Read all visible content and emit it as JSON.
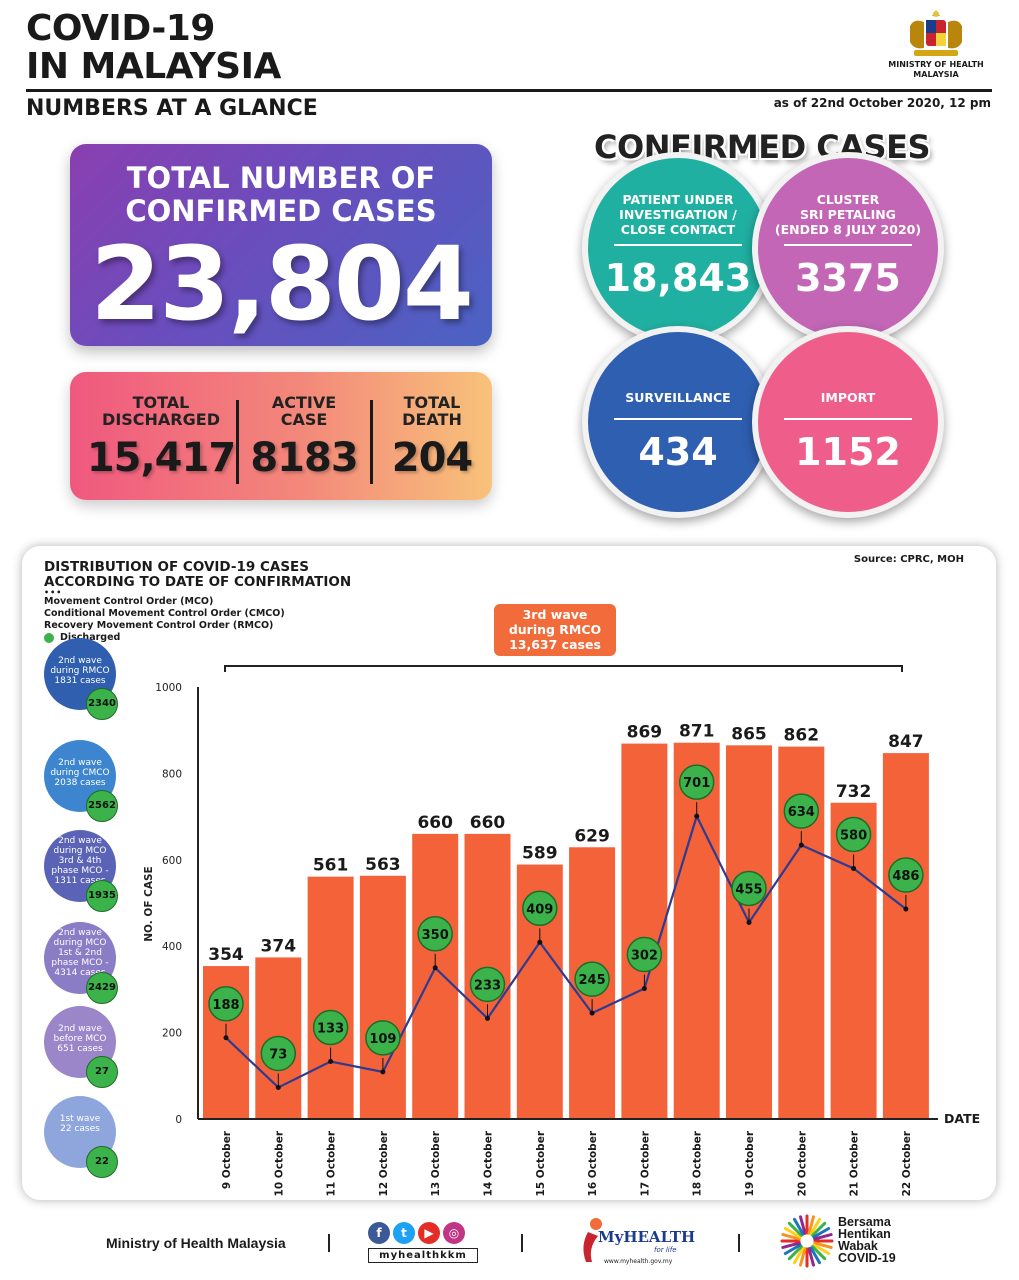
{
  "header": {
    "title_line1": "COVID-19",
    "title_line2": "IN MALAYSIA",
    "subtitle": "NUMBERS AT A GLANCE",
    "as_of": "as of 22nd October 2020, 12 pm",
    "ministry_line1": "MINISTRY OF HEALTH",
    "ministry_line2": "MALAYSIA"
  },
  "total": {
    "label_line1": "TOTAL NUMBER OF",
    "label_line2": "CONFIRMED CASES",
    "value": "23,804"
  },
  "stats": {
    "discharged_label1": "TOTAL",
    "discharged_label2": "DISCHARGED",
    "discharged_value": "15,417",
    "active_label1": "ACTIVE",
    "active_label2": "CASE",
    "active_value": "8183",
    "death_label1": "TOTAL",
    "death_label2": "DEATH",
    "death_value": "204"
  },
  "confirmed": {
    "title": "CONFIRMED CASES",
    "pui_label1": "PATIENT UNDER",
    "pui_label2": "INVESTIGATION /",
    "pui_label3": "CLOSE CONTACT",
    "pui_value": "18,843",
    "cluster_label1": "CLUSTER",
    "cluster_label2": "SRI PETALING",
    "cluster_label3": "(ENDED 8 JULY 2020)",
    "cluster_value": "3375",
    "surveillance_label": "SURVEILLANCE",
    "surveillance_value": "434",
    "import_label": "IMPORT",
    "import_value": "1152"
  },
  "chart_panel": {
    "title_line1": "DISTRIBUTION OF COVID-19 CASES",
    "title_line2": "ACCORDING TO DATE OF CONFIRMATION",
    "source": "Source: CPRC, MOH",
    "legend_dots": "•••",
    "legend_mco": "Movement Control Order (MCO)",
    "legend_cmco": "Conditional Movement Control Order (CMCO)",
    "legend_rmco": "Recovery Movement Control Order (RMCO)",
    "legend_discharged": "Discharged",
    "wave_badge_line1": "3rd wave",
    "wave_badge_line2": "during RMCO",
    "wave_badge_line3": "13,637 cases",
    "side_waves": [
      {
        "l1": "2nd wave",
        "l2": "during RMCO",
        "l3": "1831 cases",
        "l4": "",
        "discharged": "2340",
        "color": "#2f5fae"
      },
      {
        "l1": "2nd wave",
        "l2": "during CMCO",
        "l3": "2038 cases",
        "l4": "",
        "discharged": "2562",
        "color": "#3d86cf"
      },
      {
        "l1": "2nd wave",
        "l2": "during MCO",
        "l3": "3rd & 4th",
        "l4": "phase MCO -",
        "l5": "1311 cases",
        "discharged": "1935",
        "color": "#5a63b6"
      },
      {
        "l1": "2nd wave",
        "l2": "during MCO",
        "l3": "1st & 2nd",
        "l4": "phase MCO -",
        "l5": "4314 cases",
        "discharged": "2429",
        "color": "#8b7cc6"
      },
      {
        "l1": "2nd wave",
        "l2": "before MCO",
        "l3": "651 cases",
        "l4": "",
        "discharged": "27",
        "color": "#9a86c9"
      },
      {
        "l1": "1st wave",
        "l2": "22 cases",
        "l3": "",
        "l4": "",
        "discharged": "22",
        "color": "#8fa6dc"
      }
    ]
  },
  "chart_data": {
    "type": "bar",
    "categories": [
      "9 October",
      "10 October",
      "11 October",
      "12 October",
      "13 October",
      "14 October",
      "15 October",
      "16 October",
      "17 October",
      "18 October",
      "19 October",
      "20 October",
      "21 October",
      "22 October"
    ],
    "series": [
      {
        "values": [
          354,
          374,
          561,
          563,
          660,
          660,
          589,
          629,
          869,
          871,
          865,
          862,
          732,
          847
        ],
        "color": "#f4623a"
      },
      {
        "name": "Discharged",
        "type": "line",
        "values": [
          188,
          73,
          133,
          109,
          350,
          233,
          409,
          245,
          302,
          701,
          455,
          634,
          580,
          486
        ],
        "color": "#2e3b8f",
        "marker_color": "#3bb34a"
      }
    ],
    "ylabel": "NO. OF CASE",
    "xlabel": "DATE",
    "ylim": [
      0,
      1000
    ],
    "yticks": [
      0,
      200,
      400,
      600,
      800,
      1000
    ]
  },
  "footer": {
    "ministry": "Ministry of Health Malaysia",
    "social_handle": "myhealthkkm",
    "myhealth_name": "MyHEALTH",
    "myhealth_sub": "for life",
    "myhealth_url": "www.myhealth.gov.my",
    "bersama_l1": "Bersama",
    "bersama_l2": "Hentikan",
    "bersama_l3": "Wabak",
    "bersama_l4": "COVID-19"
  }
}
